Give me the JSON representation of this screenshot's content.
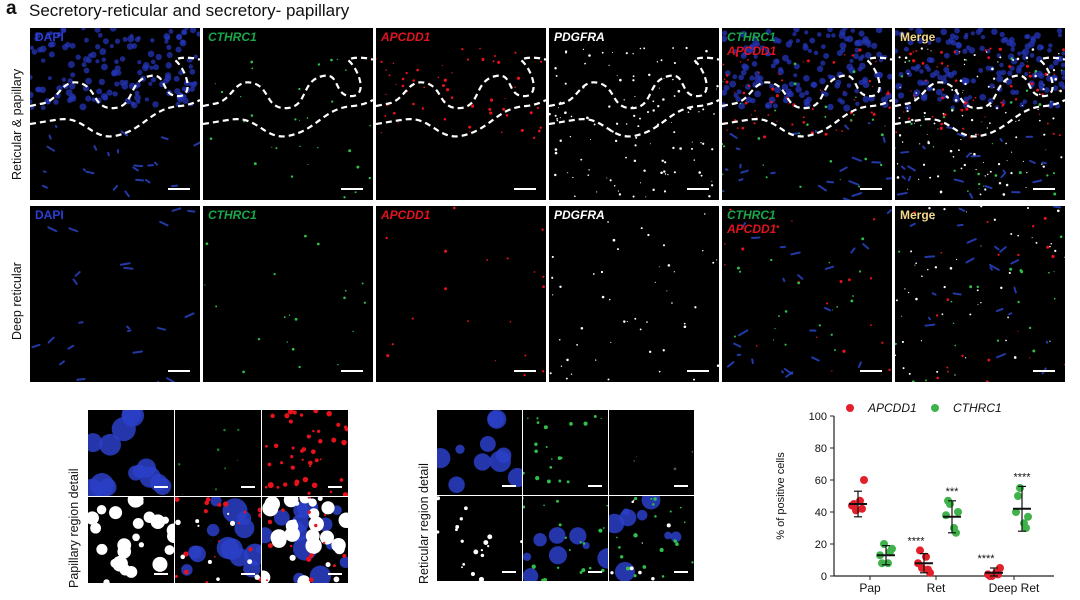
{
  "panel_letter": "a",
  "title": "Secretory-reticular and secretory- papillary",
  "rows": [
    {
      "label": "Reticular & papillary"
    },
    {
      "label": "Deep reticular"
    }
  ],
  "channels": {
    "dapi": "DAPI",
    "cthrc1": "CTHRC1",
    "apcdd1": "APCDD1",
    "pdgfra": "PDGFRA",
    "merge": "Merge"
  },
  "details": {
    "papillary_label": "Papillary region detail",
    "reticular_label": "Reticular region detail"
  },
  "colors": {
    "apcdd1": "#e3202a",
    "cthrc1": "#3fb34a",
    "dapi": "#2b3fd6"
  },
  "chart_data": {
    "type": "scatter",
    "ylabel": "% of positive cells",
    "ylim": [
      0,
      100
    ],
    "yticks": [
      "0",
      "20",
      "40",
      "60",
      "80",
      "100"
    ],
    "categories": [
      "Pap",
      "Ret",
      "Deep Ret"
    ],
    "legend": [
      "APCDD1",
      "CTHRC1"
    ],
    "series": [
      {
        "name": "APCDD1",
        "color": "#e3202a",
        "points": [
          [
            44,
            41,
            47,
            60,
            45,
            42
          ],
          [
            8,
            5,
            12,
            2,
            16,
            4
          ],
          [
            1,
            0,
            2,
            5,
            0,
            1
          ]
        ],
        "mean": [
          45,
          8,
          2
        ],
        "sd": [
          8,
          6,
          3
        ]
      },
      {
        "name": "CTHRC1",
        "color": "#3fb34a",
        "points": [
          [
            13,
            20,
            8,
            17,
            8,
            15
          ],
          [
            38,
            45,
            30,
            40,
            47,
            27
          ],
          [
            40,
            55,
            33,
            37,
            50,
            30
          ]
        ],
        "mean": [
          13,
          37,
          42
        ],
        "sd": [
          6,
          10,
          14
        ]
      }
    ],
    "significance": [
      {
        "category": "Ret",
        "series": "APCDD1",
        "text": "****"
      },
      {
        "category": "Ret",
        "series": "CTHRC1",
        "text": "***"
      },
      {
        "category": "Deep Ret",
        "series": "APCDD1",
        "text": "****"
      },
      {
        "category": "Deep Ret",
        "series": "CTHRC1",
        "text": "****"
      }
    ]
  }
}
